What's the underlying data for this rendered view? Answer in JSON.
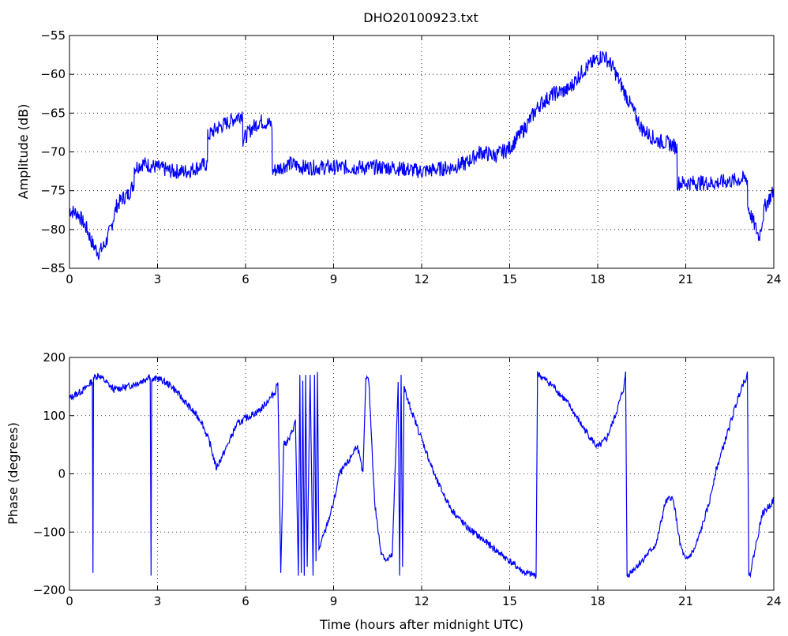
{
  "title": "DHO20100923.txt",
  "colors": {
    "line": "#0000ff",
    "axes": "#000000",
    "grid": "#000000",
    "background": "#ffffff"
  },
  "chart_data": [
    {
      "type": "line",
      "title": "DHO20100923.txt",
      "xlabel": "",
      "ylabel": "Amplitude (dB)",
      "xlim": [
        0,
        24
      ],
      "ylim": [
        -85,
        -55
      ],
      "xticks": [
        0,
        3,
        6,
        9,
        12,
        15,
        18,
        21,
        24
      ],
      "yticks": [
        -85,
        -80,
        -75,
        -70,
        -65,
        -60,
        -55
      ],
      "xtick_labels": [
        "0",
        "3",
        "6",
        "9",
        "12",
        "15",
        "18",
        "21",
        "24"
      ],
      "ytick_labels": [
        "−85",
        "−80",
        "−75",
        "−70",
        "−65",
        "−60",
        "−55"
      ],
      "grid": true,
      "series": [
        {
          "x": [
            0,
            0.3,
            0.6,
            0.8,
            1.0,
            1.2,
            1.4,
            1.6,
            1.8,
            2.0,
            2.2,
            2.21,
            2.5,
            3.0,
            3.5,
            4.0,
            4.7,
            4.71,
            5.0,
            5.5,
            5.9,
            5.91,
            6.2,
            6.5,
            6.9,
            6.91,
            7.2,
            7.5,
            8.0,
            9.0,
            10.0,
            11.0,
            12.0,
            13.0,
            13.5,
            14.0,
            14.5,
            15.0,
            15.5,
            16.0,
            16.5,
            17.0,
            17.5,
            18.0,
            18.2,
            18.5,
            19.0,
            19.5,
            20.0,
            20.5,
            20.7,
            20.71,
            21.0,
            22.0,
            23.0,
            23.1,
            23.11,
            23.3,
            23.5,
            23.7,
            24.0
          ],
          "y": [
            -77.5,
            -78,
            -80,
            -82,
            -83,
            -82,
            -80,
            -77,
            -76,
            -75.5,
            -74,
            -72,
            -71.5,
            -72,
            -72.5,
            -72.5,
            -71.5,
            -68,
            -67,
            -66,
            -65,
            -68.5,
            -67,
            -66,
            -66.5,
            -72.5,
            -72,
            -71.5,
            -72,
            -72,
            -72,
            -72,
            -72.5,
            -72,
            -71.5,
            -70,
            -70.5,
            -69.5,
            -67,
            -64,
            -62.5,
            -62,
            -59.5,
            -58,
            -57.5,
            -59,
            -63,
            -67,
            -68.5,
            -69,
            -69.5,
            -74,
            -74,
            -74,
            -73.5,
            -73.5,
            -77,
            -79,
            -81,
            -77,
            -75
          ]
        }
      ]
    },
    {
      "type": "line",
      "title": "",
      "xlabel": "Time (hours after midnight UTC)",
      "ylabel": "Phase (degrees)",
      "xlim": [
        0,
        24
      ],
      "ylim": [
        -200,
        200
      ],
      "xticks": [
        0,
        3,
        6,
        9,
        12,
        15,
        18,
        21,
        24
      ],
      "yticks": [
        -200,
        -100,
        0,
        100,
        200
      ],
      "xtick_labels": [
        "0",
        "3",
        "6",
        "9",
        "12",
        "15",
        "18",
        "21",
        "24"
      ],
      "ytick_labels": [
        "−200",
        "−100",
        "0",
        "100",
        "200"
      ],
      "grid": true,
      "series": [
        {
          "x": [
            0,
            0.5,
            0.78,
            0.8,
            0.82,
            1.0,
            1.5,
            2.0,
            2.5,
            2.75,
            2.78,
            2.8,
            3.0,
            3.5,
            4.0,
            4.5,
            4.8,
            5.0,
            5.3,
            5.7,
            6.0,
            6.5,
            7.0,
            7.1,
            7.2,
            7.3,
            7.5,
            7.7,
            7.8,
            7.85,
            7.9,
            7.95,
            8.0,
            8.05,
            8.1,
            8.2,
            8.3,
            8.35,
            8.4,
            8.45,
            8.5,
            8.7,
            9.0,
            9.2,
            9.5,
            9.8,
            10.0,
            10.1,
            10.2,
            10.4,
            10.6,
            10.8,
            11.0,
            11.2,
            11.25,
            11.3,
            11.35,
            11.4,
            11.5,
            12.0,
            12.5,
            13.0,
            13.5,
            14.0,
            14.5,
            15.0,
            15.5,
            15.9,
            15.95,
            16.0,
            16.5,
            17.0,
            17.5,
            18.0,
            18.3,
            18.6,
            18.9,
            18.95,
            19.0,
            19.5,
            20.0,
            20.3,
            20.5,
            20.6,
            20.8,
            21.0,
            21.3,
            21.5,
            21.8,
            22.0,
            22.3,
            22.6,
            22.9,
            23.1,
            23.15,
            23.2,
            23.4,
            23.6,
            24.0
          ],
          "y": [
            130,
            145,
            160,
            -170,
            165,
            170,
            145,
            150,
            160,
            170,
            -175,
            160,
            165,
            150,
            120,
            90,
            50,
            10,
            40,
            85,
            95,
            110,
            140,
            160,
            -170,
            50,
            60,
            90,
            -175,
            170,
            -170,
            160,
            -175,
            170,
            -160,
            170,
            -175,
            170,
            -150,
            175,
            -130,
            -100,
            -50,
            0,
            20,
            50,
            0,
            165,
            160,
            -50,
            -130,
            -150,
            -140,
            160,
            -175,
            170,
            -160,
            150,
            130,
            60,
            -10,
            -60,
            -90,
            -110,
            -130,
            -150,
            -170,
            -175,
            175,
            170,
            150,
            120,
            80,
            45,
            60,
            100,
            150,
            175,
            -175,
            -150,
            -120,
            -50,
            -40,
            -50,
            -120,
            -150,
            -130,
            -100,
            -50,
            0,
            50,
            100,
            150,
            170,
            -175,
            -170,
            -120,
            -70,
            -45
          ]
        }
      ]
    }
  ]
}
